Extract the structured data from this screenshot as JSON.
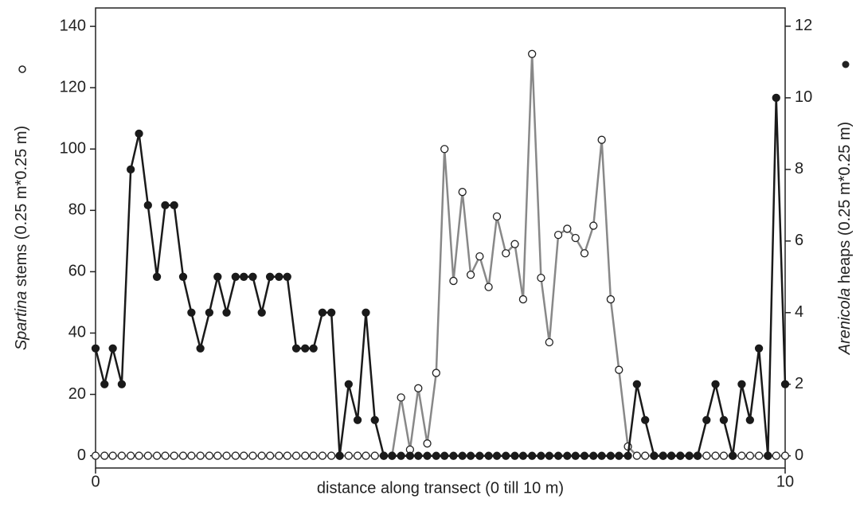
{
  "chart_data": {
    "type": "line",
    "xlabel": "distance along transect (0 till 10 m)",
    "ylabel": "stems (0.25 m*0.25 m)",
    "y2label": "heaps (0.25 m*0.25 m)",
    "x": [
      0,
      0.13,
      0.25,
      0.38,
      0.51,
      0.63,
      0.76,
      0.89,
      1.01,
      1.14,
      1.27,
      1.39,
      1.52,
      1.65,
      1.77,
      1.9,
      2.03,
      2.15,
      2.28,
      2.41,
      2.53,
      2.66,
      2.78,
      2.91,
      3.04,
      3.16,
      3.29,
      3.42,
      3.54,
      3.67,
      3.8,
      3.92,
      4.05,
      4.18,
      4.3,
      4.43,
      4.56,
      4.68,
      4.81,
      4.94,
      5.06,
      5.19,
      5.32,
      5.44,
      5.57,
      5.7,
      5.82,
      5.95,
      6.08,
      6.2,
      6.33,
      6.46,
      6.58,
      6.71,
      6.84,
      6.96,
      7.09,
      7.22,
      7.34,
      7.47,
      7.59,
      7.72,
      7.85,
      7.97,
      8.1,
      8.23,
      8.35,
      8.48,
      8.61,
      8.73,
      8.86,
      8.99,
      9.11,
      9.24,
      9.37,
      9.49,
      9.62,
      9.75,
      9.87,
      10
    ],
    "series": [
      {
        "name": "Spartina",
        "color": "#888888",
        "marker": "open",
        "values": [
          0,
          0,
          0,
          0,
          0,
          0,
          0,
          0,
          0,
          0,
          0,
          0,
          0,
          0,
          0,
          0,
          0,
          0,
          0,
          0,
          0,
          0,
          0,
          0,
          0,
          0,
          0,
          0,
          0,
          0,
          0,
          0,
          0,
          0,
          0,
          19,
          2,
          22,
          4,
          27,
          100,
          57,
          86,
          59,
          65,
          55,
          78,
          66,
          69,
          51,
          131,
          58,
          37,
          72,
          74,
          71,
          66,
          75,
          103,
          51,
          28,
          3,
          0,
          0,
          0,
          0,
          0,
          0,
          0,
          0,
          0,
          0,
          0,
          0,
          0,
          0,
          0,
          0,
          0,
          0
        ]
      },
      {
        "name": "Arenicola",
        "color": "#1a1a1a",
        "marker": "filled",
        "axis": "y2",
        "values": [
          3,
          2,
          3,
          2,
          8,
          9,
          7,
          5,
          7,
          7,
          5,
          4,
          3,
          4,
          5,
          4,
          5,
          5,
          5,
          4,
          5,
          5,
          5,
          3,
          3,
          3,
          4,
          4,
          0,
          2,
          1,
          4,
          1,
          0,
          0,
          0,
          0,
          0,
          0,
          0,
          0,
          0,
          0,
          0,
          0,
          0,
          0,
          0,
          0,
          0,
          0,
          0,
          0,
          0,
          0,
          0,
          0,
          0,
          0,
          0,
          0,
          0,
          2,
          1,
          0,
          0,
          0,
          0,
          0,
          0,
          1,
          2,
          1,
          0,
          2,
          1,
          3,
          0,
          10,
          2
        ]
      }
    ],
    "xlim": [
      0,
      10
    ],
    "xticks": [
      0,
      10
    ],
    "ylim": [
      -4,
      146
    ],
    "yticks": [
      0,
      20,
      40,
      60,
      80,
      100,
      120,
      140
    ],
    "y2lim": [
      -0.34,
      12.51
    ],
    "y2ticks": [
      0,
      2,
      4,
      6,
      8,
      10,
      12
    ]
  }
}
